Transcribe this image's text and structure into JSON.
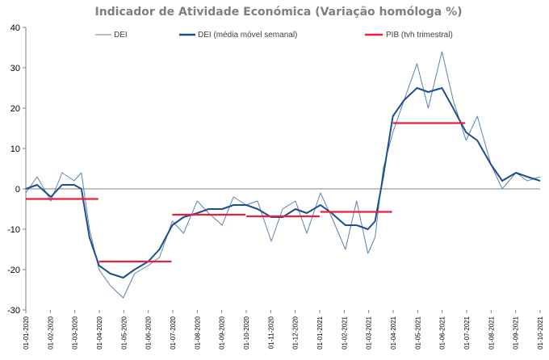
{
  "chart_data": {
    "type": "line",
    "title": "Indicador de Atividade Económica (Variação homóloga %)",
    "xlabel": "",
    "ylabel": "",
    "ylim": [
      -30,
      40
    ],
    "yticks": [
      40,
      30,
      20,
      10,
      0,
      -10,
      -20,
      -30
    ],
    "grid": false,
    "legend_position": "top",
    "x_tick_labels": [
      "01-01-2020",
      "01-02-2020",
      "01-03-2020",
      "01-04-2020",
      "01-05-2020",
      "01-06-2020",
      "01-07-2020",
      "01-08-2020",
      "01-09-2020",
      "01-10-2020",
      "01-11-2020",
      "01-12-2020",
      "01-01-2021",
      "01-02-2021",
      "01-03-2021",
      "01-04-2021",
      "01-05-2021",
      "01-06-2021",
      "01-07-2021",
      "01-08-2021",
      "01-09-2021",
      "01-10-2021"
    ],
    "series": [
      {
        "name": "DEI",
        "color": "#5b84b1",
        "style": "thin",
        "x": [
          "2020-01-01",
          "2020-01-15",
          "2020-02-01",
          "2020-02-15",
          "2020-03-01",
          "2020-03-10",
          "2020-03-20",
          "2020-04-01",
          "2020-04-15",
          "2020-05-01",
          "2020-05-15",
          "2020-06-01",
          "2020-06-15",
          "2020-07-01",
          "2020-07-15",
          "2020-08-01",
          "2020-08-15",
          "2020-09-01",
          "2020-09-15",
          "2020-10-01",
          "2020-10-15",
          "2020-11-01",
          "2020-11-15",
          "2020-12-01",
          "2020-12-15",
          "2021-01-01",
          "2021-01-15",
          "2021-02-01",
          "2021-02-15",
          "2021-03-01",
          "2021-03-10",
          "2021-03-20",
          "2021-04-01",
          "2021-04-15",
          "2021-05-01",
          "2021-05-15",
          "2021-06-01",
          "2021-06-15",
          "2021-07-01",
          "2021-07-15",
          "2021-08-01",
          "2021-08-15",
          "2021-09-01",
          "2021-09-15",
          "2021-10-01"
        ],
        "values": [
          -1,
          3,
          -3,
          4,
          2,
          4,
          -10,
          -20,
          -24,
          -27,
          -21,
          -19,
          -17,
          -8,
          -11,
          -3,
          -6,
          -9,
          -2,
          -4,
          -3,
          -13,
          -5,
          -3,
          -11,
          -1,
          -7,
          -15,
          -3,
          -16,
          -12,
          5,
          14,
          22,
          31,
          20,
          34,
          22,
          12,
          18,
          6,
          0,
          4,
          2,
          3
        ]
      },
      {
        "name": "DEI (média móvel semanal)",
        "color": "#1f4e8c",
        "style": "thick",
        "x": [
          "2020-01-01",
          "2020-01-15",
          "2020-02-01",
          "2020-02-15",
          "2020-03-01",
          "2020-03-10",
          "2020-03-20",
          "2020-04-01",
          "2020-04-15",
          "2020-05-01",
          "2020-05-15",
          "2020-06-01",
          "2020-06-15",
          "2020-07-01",
          "2020-07-15",
          "2020-08-01",
          "2020-08-15",
          "2020-09-01",
          "2020-09-15",
          "2020-10-01",
          "2020-10-15",
          "2020-11-01",
          "2020-11-15",
          "2020-12-01",
          "2020-12-15",
          "2021-01-01",
          "2021-01-15",
          "2021-02-01",
          "2021-02-15",
          "2021-03-01",
          "2021-03-10",
          "2021-03-20",
          "2021-04-01",
          "2021-04-15",
          "2021-05-01",
          "2021-05-15",
          "2021-06-01",
          "2021-06-15",
          "2021-07-01",
          "2021-07-15",
          "2021-08-01",
          "2021-08-15",
          "2021-09-01",
          "2021-09-15",
          "2021-10-01"
        ],
        "values": [
          0,
          1,
          -2,
          1,
          1,
          0,
          -12,
          -19,
          -21,
          -22,
          -20,
          -18,
          -15,
          -9,
          -7,
          -6,
          -5,
          -5,
          -4,
          -4,
          -5,
          -7,
          -7,
          -5,
          -6,
          -4,
          -6,
          -9,
          -9,
          -10,
          -8,
          3,
          18,
          22,
          25,
          24,
          25,
          20,
          14,
          12,
          6,
          2,
          4,
          3,
          2
        ]
      },
      {
        "name": "PIB (tvh trimestral)",
        "color": "#e8203a",
        "style": "step",
        "segments": [
          {
            "start": "2020-01-01",
            "end": "2020-03-31",
            "value": -2.5
          },
          {
            "start": "2020-04-01",
            "end": "2020-06-30",
            "value": -18
          },
          {
            "start": "2020-07-01",
            "end": "2020-09-30",
            "value": -6.4
          },
          {
            "start": "2020-10-01",
            "end": "2020-12-31",
            "value": -6.8
          },
          {
            "start": "2021-01-01",
            "end": "2021-03-31",
            "value": -5.7
          },
          {
            "start": "2021-04-01",
            "end": "2021-06-30",
            "value": 16.3
          }
        ]
      }
    ]
  }
}
